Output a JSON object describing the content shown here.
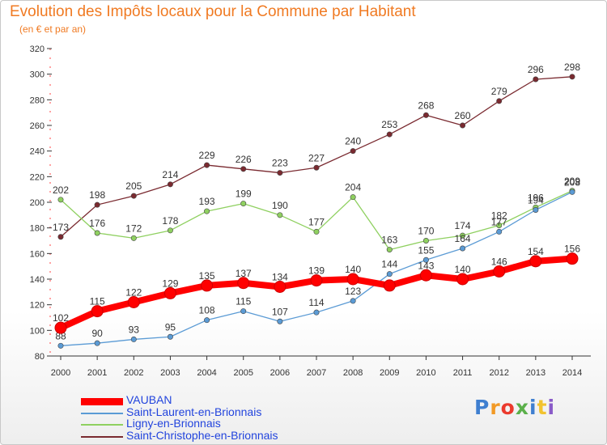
{
  "title": "Evolution des Impôts locaux pour la Commune par Habitant",
  "subtitle": "(en € et par an)",
  "logo_text": "Proxiti",
  "chart_data": {
    "type": "line",
    "x": [
      "2000",
      "2001",
      "2002",
      "2003",
      "2004",
      "2005",
      "2006",
      "2007",
      "2008",
      "2009",
      "2010",
      "2011",
      "2012",
      "2013",
      "2014"
    ],
    "ylim": [
      80,
      320
    ],
    "yticks": [
      80,
      100,
      120,
      140,
      160,
      180,
      200,
      220,
      240,
      260,
      280,
      300,
      320
    ],
    "grid": false,
    "legend_position": "bottom-left",
    "series": [
      {
        "name": "VAUBAN",
        "color": "#ff0000",
        "values": [
          102,
          115,
          122,
          129,
          135,
          137,
          134,
          139,
          140,
          135,
          143,
          140,
          146,
          154,
          156
        ],
        "labels": [
          "102",
          "115",
          "122",
          "129",
          "135",
          "137",
          "134",
          "139",
          "140",
          "",
          "143",
          "140",
          "146",
          "154",
          "156"
        ]
      },
      {
        "name": "Saint-Laurent-en-Brionnais",
        "color": "#5b9bd5",
        "values": [
          88,
          90,
          93,
          95,
          108,
          115,
          107,
          114,
          123,
          144,
          155,
          164,
          177,
          194,
          208
        ],
        "labels": [
          "88",
          "90",
          "93",
          "95",
          "108",
          "115",
          "107",
          "114",
          "123",
          "144",
          "155",
          "164",
          "177",
          "194",
          "208"
        ]
      },
      {
        "name": "Ligny-en-Brionnais",
        "color": "#8fd060",
        "values": [
          202,
          176,
          172,
          178,
          193,
          199,
          190,
          177,
          204,
          163,
          170,
          174,
          182,
          196,
          209
        ],
        "labels": [
          "202",
          "176",
          "172",
          "178",
          "193",
          "199",
          "190",
          "177",
          "204",
          "163",
          "170",
          "174",
          "182",
          "196",
          "209"
        ]
      },
      {
        "name": "Saint-Christophe-en-Brionnais",
        "color": "#7a2a30",
        "values": [
          173,
          198,
          205,
          214,
          229,
          226,
          223,
          227,
          240,
          253,
          268,
          260,
          279,
          296,
          298
        ],
        "labels": [
          "173",
          "198",
          "205",
          "214",
          "229",
          "226",
          "223",
          "227",
          "240",
          "253",
          "268",
          "260",
          "279",
          "296",
          "298"
        ]
      }
    ]
  }
}
